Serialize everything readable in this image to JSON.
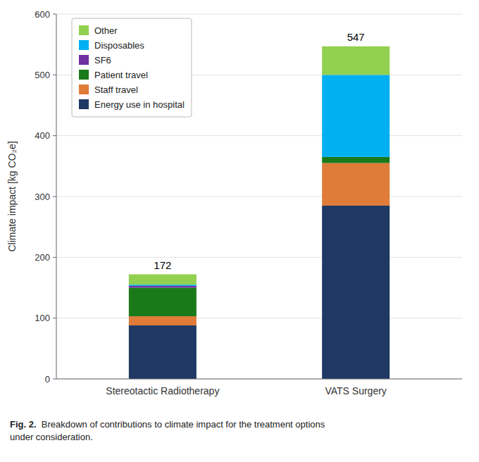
{
  "chart_data": {
    "type": "bar",
    "stacked": true,
    "categories": [
      "Stereotactic Radiotherapy",
      "VATS Surgery"
    ],
    "series": [
      {
        "name": "Energy use in hospital",
        "color": "#1f3864",
        "values": [
          88,
          285
        ]
      },
      {
        "name": "Staff travel",
        "color": "#e07b39",
        "values": [
          15,
          70
        ]
      },
      {
        "name": "Patient travel",
        "color": "#1a7a1a",
        "values": [
          47,
          10
        ]
      },
      {
        "name": "SF6",
        "color": "#7030a0",
        "values": [
          3,
          0
        ]
      },
      {
        "name": "Disposables",
        "color": "#00b0f0",
        "values": [
          2,
          135
        ]
      },
      {
        "name": "Other",
        "color": "#92d050",
        "values": [
          17,
          47
        ]
      }
    ],
    "totals": [
      172,
      547
    ],
    "y_label": "Climate impact [kg CO₂e]",
    "ylim": [
      0,
      600
    ],
    "yticks": [
      0,
      100,
      200,
      300,
      400,
      500,
      600
    ],
    "grid": true,
    "legend": "upper left",
    "annotations": [
      "Fig. 2.",
      "  Breakdown of contributions to climate impact for the treatment options\nunder consideration."
    ]
  }
}
